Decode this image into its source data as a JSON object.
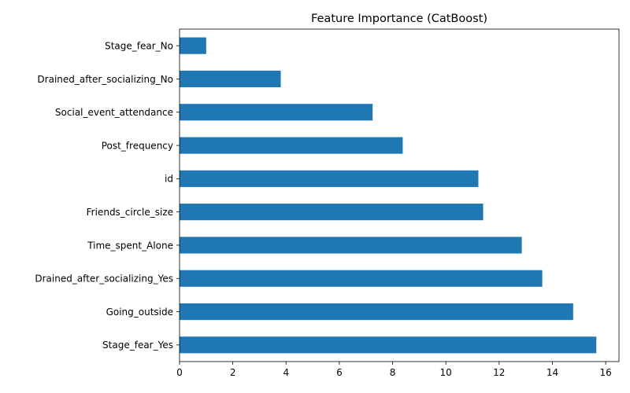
{
  "chart_data": {
    "type": "bar",
    "orientation": "horizontal",
    "title": "Feature Importance (CatBoost)",
    "xlabel": "",
    "ylabel": "",
    "categories": [
      "Stage_fear_No",
      "Drained_after_socializing_No",
      "Social_event_attendance",
      "Post_frequency",
      "id",
      "Friends_circle_size",
      "Time_spent_Alone",
      "Drained_after_socializing_Yes",
      "Going_outside",
      "Stage_fear_Yes"
    ],
    "values": [
      1.0,
      3.8,
      7.25,
      8.38,
      11.22,
      11.4,
      12.85,
      13.62,
      14.78,
      15.65
    ],
    "xlim": [
      0,
      16.5
    ],
    "xticks": [
      0,
      2,
      4,
      6,
      8,
      10,
      12,
      14,
      16
    ],
    "grid": false,
    "legend": "none",
    "bar_color": "#1f77b4"
  }
}
